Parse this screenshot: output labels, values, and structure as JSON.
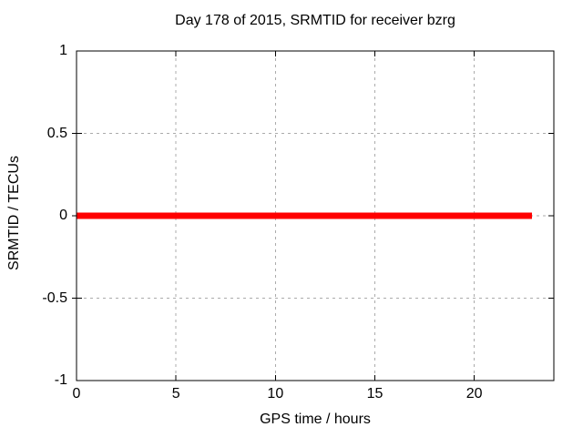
{
  "chart_data": {
    "type": "line",
    "title": "Day 178 of 2015, SRMTID for receiver bzrg",
    "xlabel": "GPS time / hours",
    "ylabel": "SRMTID / TECUs",
    "xlim": [
      0,
      24
    ],
    "ylim": [
      -1,
      1
    ],
    "xticks": [
      0,
      5,
      10,
      15,
      20
    ],
    "yticks": [
      -1,
      -0.5,
      0,
      0.5,
      1
    ],
    "grid": true,
    "legend": false,
    "colors": {
      "background": "#ffffff",
      "axis": "#000000",
      "grid": "#ababab",
      "series": "#ff0000"
    },
    "series": [
      {
        "name": "SRMTID",
        "color": "#ff0000",
        "linewidth": 7,
        "x": [
          0,
          22.9
        ],
        "y": [
          0,
          0
        ]
      }
    ]
  }
}
